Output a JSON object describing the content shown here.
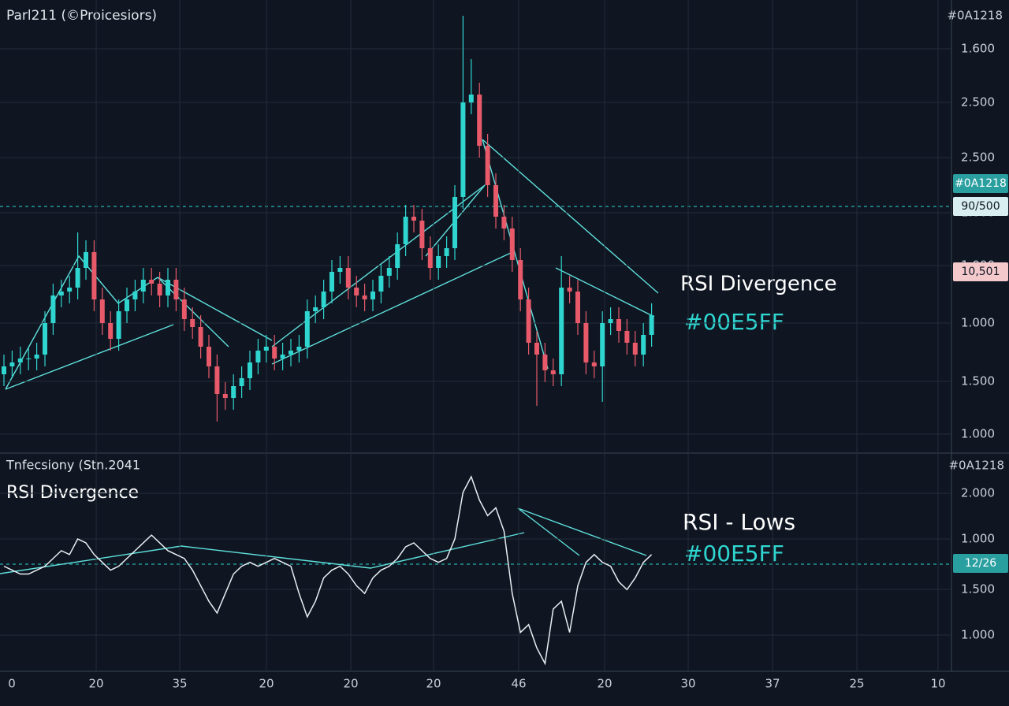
{
  "chart_data": [
    {
      "type": "candlestick",
      "title": "Parl211 (©Proicesiors)",
      "corner_label": "#0A1218",
      "annotation": "RSI Divergence",
      "annotation_color_text": "#00E5FF",
      "price_labels": [
        "1.600",
        "2.500",
        "2.500",
        "1.000",
        "1.000",
        "1.000",
        "1.500",
        "1.000"
      ],
      "badges": [
        "#0A1218",
        "90/500",
        "10,501"
      ],
      "up_color": "#2fd6d0",
      "down_color": "#e85a6a",
      "ylim": [
        0,
        115
      ],
      "open": [
        20,
        22,
        23,
        24,
        24,
        25,
        33,
        40,
        41,
        42,
        47,
        51,
        39,
        33,
        29,
        36,
        39,
        41,
        44,
        43,
        40,
        44,
        39,
        34,
        32,
        27,
        22,
        15,
        14,
        17,
        19,
        23,
        26,
        27,
        24,
        25,
        26,
        27,
        36,
        37,
        41,
        46,
        47,
        42,
        40,
        39,
        41,
        45,
        47,
        53,
        60,
        59,
        52,
        47,
        50,
        52,
        65,
        89,
        91,
        78,
        68,
        60,
        57,
        49,
        39,
        28,
        25,
        21,
        20,
        42,
        41,
        33,
        23,
        22,
        33,
        34,
        31,
        28,
        25,
        30
      ],
      "high": [
        25,
        26,
        27,
        27,
        28,
        36,
        43,
        44,
        45,
        56,
        54,
        54,
        42,
        36,
        39,
        42,
        44,
        47,
        47,
        46,
        47,
        47,
        42,
        37,
        35,
        30,
        25,
        18,
        20,
        22,
        26,
        29,
        30,
        30,
        28,
        29,
        30,
        39,
        40,
        44,
        49,
        50,
        50,
        45,
        43,
        44,
        48,
        50,
        56,
        63,
        63,
        62,
        55,
        53,
        55,
        68,
        111,
        100,
        94,
        81,
        71,
        63,
        60,
        52,
        42,
        31,
        28,
        24,
        50,
        45,
        44,
        36,
        26,
        36,
        37,
        37,
        34,
        31,
        33,
        38
      ],
      "low": [
        17,
        19,
        20,
        21,
        21,
        22,
        30,
        37,
        38,
        39,
        44,
        36,
        30,
        26,
        26,
        33,
        36,
        38,
        40,
        37,
        37,
        36,
        31,
        29,
        24,
        19,
        8,
        11,
        11,
        14,
        16,
        20,
        23,
        21,
        21,
        22,
        23,
        24,
        33,
        34,
        38,
        43,
        39,
        37,
        36,
        36,
        38,
        42,
        44,
        50,
        56,
        49,
        44,
        44,
        47,
        49,
        62,
        86,
        75,
        65,
        57,
        54,
        46,
        36,
        25,
        12,
        18,
        17,
        17,
        38,
        30,
        20,
        19,
        13,
        30,
        28,
        25,
        22,
        22,
        27
      ],
      "close": [
        22,
        23,
        24,
        24,
        25,
        33,
        40,
        41,
        42,
        47,
        51,
        39,
        33,
        29,
        36,
        39,
        41,
        44,
        43,
        40,
        44,
        39,
        34,
        32,
        27,
        22,
        15,
        14,
        17,
        19,
        23,
        26,
        27,
        24,
        25,
        26,
        27,
        36,
        37,
        41,
        46,
        47,
        42,
        40,
        39,
        41,
        45,
        47,
        53,
        60,
        59,
        52,
        47,
        50,
        52,
        65,
        89,
        91,
        78,
        68,
        60,
        57,
        49,
        39,
        28,
        25,
        21,
        20,
        42,
        41,
        33,
        23,
        22,
        33,
        34,
        31,
        28,
        25,
        30,
        35
      ]
    },
    {
      "type": "line",
      "title": "Tnfecsiony (Stn.2041",
      "corner_label": "#0A1218",
      "subtitle": "RSI Divergence",
      "annotation": "RSI - Lows",
      "annotation_color_text": "#00E5FF",
      "price_labels": [
        "2.000",
        "1.000",
        "1.500",
        "1.000"
      ],
      "badges": [
        "12/26"
      ],
      "color": "#e8eef2",
      "ylim": [
        0,
        50
      ],
      "values": [
        27,
        26,
        25,
        25,
        26,
        27,
        29,
        31,
        30,
        34,
        33,
        30,
        28,
        26,
        27,
        29,
        31,
        33,
        35,
        33,
        31,
        30,
        29,
        26,
        22,
        18,
        15,
        20,
        25,
        27,
        28,
        27,
        28,
        29,
        28,
        27,
        20,
        14,
        18,
        24,
        26,
        27,
        25,
        22,
        20,
        24,
        26,
        27,
        29,
        32,
        33,
        31,
        29,
        28,
        29,
        34,
        46,
        50,
        44,
        40,
        42,
        36,
        20,
        10,
        12,
        6,
        2,
        16,
        18,
        10,
        22,
        28,
        30,
        28,
        27,
        23,
        21,
        24,
        28,
        30
      ]
    }
  ],
  "x_axis_labels": [
    "0",
    "20",
    "35",
    "20",
    "20",
    "20",
    "46",
    "20",
    "30",
    "37",
    "25",
    "10"
  ]
}
